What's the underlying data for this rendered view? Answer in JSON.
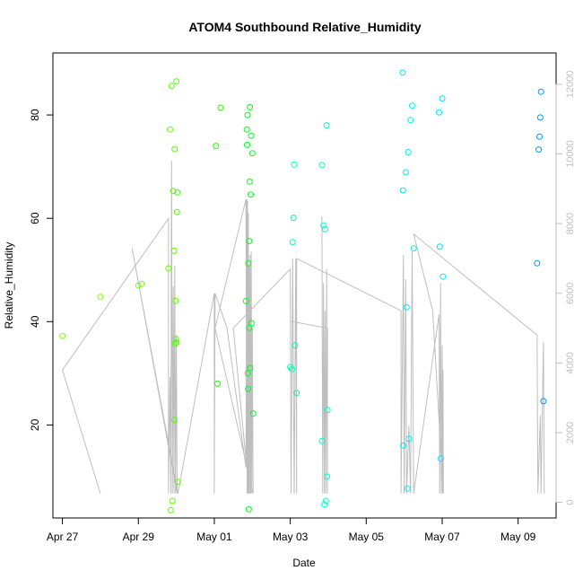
{
  "chart_data": {
    "type": "scatter",
    "title": "ATOM4 Southbound Relative_Humidity",
    "xlabel": "Date",
    "ylabel": "Relative_Humidity",
    "grid": false,
    "legend": "none",
    "x_ticks": [
      "Apr 27",
      "Apr 29",
      "May 01",
      "May 03",
      "May 05",
      "May 07",
      "May 09"
    ],
    "x_tick_dates": [
      "2024-04-27",
      "2024-04-29",
      "2024-05-01",
      "2024-05-03",
      "2024-05-05",
      "2024-05-07",
      "2024-05-09"
    ],
    "xlim": [
      "2024-04-26T18:00",
      "2024-05-10T00:00"
    ],
    "y_ticks": [
      20,
      40,
      60,
      80
    ],
    "ylim": [
      2,
      92
    ],
    "y2_ticks": [
      0,
      2000,
      4000,
      6000,
      8000,
      10000,
      12000
    ],
    "y2lim": [
      -450,
      12900
    ],
    "colors": {
      "line": "#bebebe",
      "axis": "#000000",
      "axis2": "#bebebe",
      "point_green": "#00ff00",
      "point_cyan": "#00e5ee",
      "point_blue": "#0099ee"
    },
    "series": [
      {
        "kind": "points",
        "axis": "left",
        "points": [
          {
            "x": "2024-04-27T00:00",
            "y": 37.2,
            "c": "#88ff00"
          },
          {
            "x": "2024-04-28T00:00",
            "y": 44.8,
            "c": "#88ff00"
          },
          {
            "x": "2024-04-29T00:00",
            "y": 47.0,
            "c": "#7dff00"
          },
          {
            "x": "2024-04-29T02:00",
            "y": 47.3,
            "c": "#7dff00"
          },
          {
            "x": "2024-04-29T19:00",
            "y": 50.3,
            "c": "#66ff00"
          },
          {
            "x": "2024-04-29T20:00",
            "y": 77.2,
            "c": "#66ff00"
          },
          {
            "x": "2024-04-29T20:30",
            "y": 3.5,
            "c": "#66ff00"
          },
          {
            "x": "2024-04-29T21:00",
            "y": 85.6,
            "c": "#55ff00"
          },
          {
            "x": "2024-04-29T21:30",
            "y": 5.3,
            "c": "#55ff00"
          },
          {
            "x": "2024-04-29T22:00",
            "y": 65.3,
            "c": "#55ff00"
          },
          {
            "x": "2024-04-29T22:30",
            "y": 53.7,
            "c": "#55ff00"
          },
          {
            "x": "2024-04-29T22:45",
            "y": 21.0,
            "c": "#55ff00"
          },
          {
            "x": "2024-04-29T23:00",
            "y": 73.4,
            "c": "#55ff00"
          },
          {
            "x": "2024-04-29T23:20",
            "y": 35.8,
            "c": "#55ff00"
          },
          {
            "x": "2024-04-29T23:30",
            "y": 44.0,
            "c": "#55ff00"
          },
          {
            "x": "2024-04-29T23:45",
            "y": 36.6,
            "c": "#55ff00"
          },
          {
            "x": "2024-04-30T00:00",
            "y": 86.5,
            "c": "#55ff00"
          },
          {
            "x": "2024-04-30T00:10",
            "y": 36.0,
            "c": "#55ff00"
          },
          {
            "x": "2024-04-30T00:20",
            "y": 61.2,
            "c": "#55ff00"
          },
          {
            "x": "2024-04-30T00:40",
            "y": 65.0,
            "c": "#55ff00"
          },
          {
            "x": "2024-04-30T01:00",
            "y": 9.0,
            "c": "#55ff00"
          },
          {
            "x": "2024-05-01T01:00",
            "y": 74.0,
            "c": "#22ff00"
          },
          {
            "x": "2024-05-01T02:00",
            "y": 28.0,
            "c": "#22ff00"
          },
          {
            "x": "2024-05-01T04:00",
            "y": 81.4,
            "c": "#22ff00"
          },
          {
            "x": "2024-05-01T20:00",
            "y": 44.0,
            "c": "#00ff22"
          },
          {
            "x": "2024-05-01T20:30",
            "y": 77.2,
            "c": "#00ff22"
          },
          {
            "x": "2024-05-01T20:45",
            "y": 74.2,
            "c": "#00ff22"
          },
          {
            "x": "2024-05-01T21:00",
            "y": 80.0,
            "c": "#00ff22"
          },
          {
            "x": "2024-05-01T21:10",
            "y": 30.0,
            "c": "#00ff22"
          },
          {
            "x": "2024-05-01T21:20",
            "y": 27.0,
            "c": "#00ff22"
          },
          {
            "x": "2024-05-01T21:30",
            "y": 51.3,
            "c": "#00ff22"
          },
          {
            "x": "2024-05-01T21:45",
            "y": 3.7,
            "c": "#00ff22"
          },
          {
            "x": "2024-05-01T22:00",
            "y": 55.6,
            "c": "#00ff22"
          },
          {
            "x": "2024-05-01T22:10",
            "y": 38.8,
            "c": "#00ff22"
          },
          {
            "x": "2024-05-01T22:20",
            "y": 67.1,
            "c": "#00ff22"
          },
          {
            "x": "2024-05-01T22:30",
            "y": 81.5,
            "c": "#00ff22"
          },
          {
            "x": "2024-05-01T22:40",
            "y": 31.0,
            "c": "#00ff22"
          },
          {
            "x": "2024-05-01T23:00",
            "y": 64.6,
            "c": "#00ff22"
          },
          {
            "x": "2024-05-01T23:15",
            "y": 76.0,
            "c": "#00ff22"
          },
          {
            "x": "2024-05-01T23:30",
            "y": 39.7,
            "c": "#00ff22"
          },
          {
            "x": "2024-05-02T00:00",
            "y": 72.6,
            "c": "#00ff22"
          },
          {
            "x": "2024-05-02T00:30",
            "y": 22.2,
            "c": "#00ff22"
          },
          {
            "x": "2024-05-03T00:00",
            "y": 31.2,
            "c": "#00ffaa"
          },
          {
            "x": "2024-05-03T01:00",
            "y": 30.8,
            "c": "#00ffaa"
          },
          {
            "x": "2024-05-03T01:30",
            "y": 55.4,
            "c": "#00ffaa"
          },
          {
            "x": "2024-05-03T02:00",
            "y": 60.1,
            "c": "#00ffaa"
          },
          {
            "x": "2024-05-03T02:30",
            "y": 70.4,
            "c": "#00ffaa"
          },
          {
            "x": "2024-05-03T03:00",
            "y": 35.4,
            "c": "#00ffaa"
          },
          {
            "x": "2024-05-03T04:00",
            "y": 26.2,
            "c": "#00ffaa"
          },
          {
            "x": "2024-05-03T20:00",
            "y": 70.3,
            "c": "#00ffcc"
          },
          {
            "x": "2024-05-03T20:00",
            "y": 16.9,
            "c": "#00ffcc"
          },
          {
            "x": "2024-05-03T21:00",
            "y": 58.6,
            "c": "#00ffcc"
          },
          {
            "x": "2024-05-03T21:30",
            "y": 4.6,
            "c": "#00ffcc"
          },
          {
            "x": "2024-05-03T22:00",
            "y": 57.9,
            "c": "#00ffcc"
          },
          {
            "x": "2024-05-03T22:30",
            "y": 5.3,
            "c": "#00ffcc"
          },
          {
            "x": "2024-05-03T23:00",
            "y": 78.0,
            "c": "#00ffcc"
          },
          {
            "x": "2024-05-03T23:15",
            "y": 10.0,
            "c": "#00ffcc"
          },
          {
            "x": "2024-05-03T23:30",
            "y": 22.9,
            "c": "#00ffcc"
          },
          {
            "x": "2024-05-05T23:00",
            "y": 88.2,
            "c": "#00eeee"
          },
          {
            "x": "2024-05-05T23:10",
            "y": 65.4,
            "c": "#00eeee"
          },
          {
            "x": "2024-05-05T23:20",
            "y": 16.0,
            "c": "#00eeee"
          },
          {
            "x": "2024-05-06T01:00",
            "y": 68.9,
            "c": "#00eeee"
          },
          {
            "x": "2024-05-06T01:30",
            "y": 42.8,
            "c": "#00eeee"
          },
          {
            "x": "2024-05-06T02:00",
            "y": 7.7,
            "c": "#00eeee"
          },
          {
            "x": "2024-05-06T02:30",
            "y": 72.8,
            "c": "#00eeee"
          },
          {
            "x": "2024-05-06T03:00",
            "y": 17.3,
            "c": "#00eeee"
          },
          {
            "x": "2024-05-06T04:00",
            "y": 79.0,
            "c": "#00eeee"
          },
          {
            "x": "2024-05-06T05:00",
            "y": 81.8,
            "c": "#00eeee"
          },
          {
            "x": "2024-05-06T06:00",
            "y": 54.2,
            "c": "#00eeee"
          },
          {
            "x": "2024-05-06T22:00",
            "y": 80.5,
            "c": "#00e5ff"
          },
          {
            "x": "2024-05-06T22:30",
            "y": 54.5,
            "c": "#00e5ff"
          },
          {
            "x": "2024-05-06T23:00",
            "y": 13.5,
            "c": "#00e5ff"
          },
          {
            "x": "2024-05-07T00:00",
            "y": 83.2,
            "c": "#00e5ff"
          },
          {
            "x": "2024-05-07T00:30",
            "y": 48.7,
            "c": "#00e5ff"
          },
          {
            "x": "2024-05-09T12:00",
            "y": 51.3,
            "c": "#0099ee"
          },
          {
            "x": "2024-05-09T13:00",
            "y": 73.3,
            "c": "#0099ee"
          },
          {
            "x": "2024-05-09T13:30",
            "y": 75.8,
            "c": "#0099ee"
          },
          {
            "x": "2024-05-09T14:00",
            "y": 79.5,
            "c": "#0099ee"
          },
          {
            "x": "2024-05-09T14:30",
            "y": 84.5,
            "c": "#0099ee"
          },
          {
            "x": "2024-05-09T16:00",
            "y": 24.6,
            "c": "#0099ee"
          }
        ]
      },
      {
        "kind": "line",
        "axis": "right",
        "points": [
          [
            "2024-04-27T00:00",
            3800
          ],
          [
            "2024-04-28T00:00",
            250
          ],
          [
            "2024-04-27T00:00",
            3800
          ],
          [
            "2024-04-29T19:00",
            8150
          ],
          [
            "2024-04-29T19:00",
            250
          ],
          [
            "2024-04-29T20:00",
            3600
          ],
          [
            "2024-04-29T20:30",
            250
          ],
          [
            "2024-04-29T21:00",
            9800
          ],
          [
            "2024-04-29T21:30",
            250
          ],
          [
            "2024-04-29T22:00",
            6200
          ],
          [
            "2024-04-29T22:30",
            250
          ],
          [
            "2024-04-29T23:00",
            6800
          ],
          [
            "2024-04-29T23:30",
            250
          ],
          [
            "2024-04-30T00:00",
            4800
          ],
          [
            "2024-04-30T00:30",
            250
          ],
          [
            "2024-04-28T20:00",
            7300
          ],
          [
            "2024-04-30T01:00",
            250
          ],
          [
            "2024-05-01T00:00",
            6000
          ],
          [
            "2024-05-01T00:00",
            250
          ],
          [
            "2024-05-01T00:30",
            6000
          ],
          [
            "2024-05-01T08:00",
            5000
          ],
          [
            "2024-05-01T20:00",
            1000
          ],
          [
            "2024-05-01T20:30",
            8700
          ],
          [
            "2024-05-01T20:45",
            250
          ],
          [
            "2024-05-01T21:00",
            8650
          ],
          [
            "2024-05-01T21:15",
            250
          ],
          [
            "2024-05-01T21:30",
            8300
          ],
          [
            "2024-05-01T21:45",
            250
          ],
          [
            "2024-05-01T22:00",
            6800
          ],
          [
            "2024-05-01T22:20",
            250
          ],
          [
            "2024-05-01T22:40",
            7100
          ],
          [
            "2024-05-01T23:00",
            250
          ],
          [
            "2024-05-01T23:20",
            7200
          ],
          [
            "2024-05-01T23:40",
            250
          ],
          [
            "2024-05-02T00:00",
            5000
          ],
          [
            "2024-05-02T00:30",
            250
          ],
          [
            "2024-05-01T00:30",
            5000
          ],
          [
            "2024-05-01T20:00",
            8700
          ],
          [
            "2024-05-01T20:30",
            1000
          ],
          [
            "2024-05-01T12:00",
            5000
          ],
          [
            "2024-05-03T00:00",
            6700
          ],
          [
            "2024-05-03T00:30",
            250
          ],
          [
            "2024-05-03T01:30",
            7000
          ],
          [
            "2024-05-03T02:30",
            250
          ],
          [
            "2024-05-03T03:30",
            7000
          ],
          [
            "2024-05-03T04:00",
            250
          ],
          [
            "2024-05-03T04:00",
            7000
          ],
          [
            "2024-05-05T22:00",
            5500
          ],
          [
            "2024-05-05T22:00",
            250
          ],
          [
            "2024-05-05T23:30",
            7100
          ],
          [
            "2024-05-06T00:00",
            250
          ],
          [
            "2024-05-06T01:00",
            6400
          ],
          [
            "2024-05-06T01:30",
            250
          ],
          [
            "2024-05-06T03:00",
            2200
          ],
          [
            "2024-05-06T04:00",
            250
          ],
          [
            "2024-05-06T05:00",
            7200
          ],
          [
            "2024-05-06T06:00",
            250
          ],
          [
            "2024-05-06T22:00",
            5400
          ],
          [
            "2024-05-06T22:30",
            250
          ],
          [
            "2024-05-06T23:00",
            6300
          ],
          [
            "2024-05-06T23:30",
            250
          ],
          [
            "2024-05-07T00:00",
            4500
          ],
          [
            "2024-05-07T00:15",
            250
          ],
          [
            "2024-05-07T00:30",
            3800
          ],
          [
            "2024-05-07T00:45",
            250
          ],
          [
            "2024-05-06T18:00",
            5500
          ],
          [
            "2024-05-06T06:00",
            7700
          ],
          [
            "2024-05-09T12:00",
            4800
          ],
          [
            "2024-05-09T12:30",
            250
          ],
          [
            "2024-05-09T14:00",
            2500
          ],
          [
            "2024-05-09T14:30",
            250
          ],
          [
            "2024-05-09T16:00",
            4600
          ],
          [
            "2024-05-09T16:30",
            250
          ]
        ]
      },
      {
        "kind": "line",
        "axis": "right",
        "points": [
          [
            "2024-05-03T20:00",
            8200
          ],
          [
            "2024-05-03T20:30",
            250
          ],
          [
            "2024-05-03T21:00",
            6300
          ],
          [
            "2024-05-03T21:30",
            250
          ],
          [
            "2024-05-03T22:00",
            5500
          ],
          [
            "2024-05-03T22:30",
            250
          ],
          [
            "2024-05-03T23:00",
            6700
          ],
          [
            "2024-05-03T23:30",
            250
          ],
          [
            "2024-05-03T23:30",
            5000
          ],
          [
            "2024-05-03T00:00",
            5200
          ]
        ]
      }
    ]
  }
}
